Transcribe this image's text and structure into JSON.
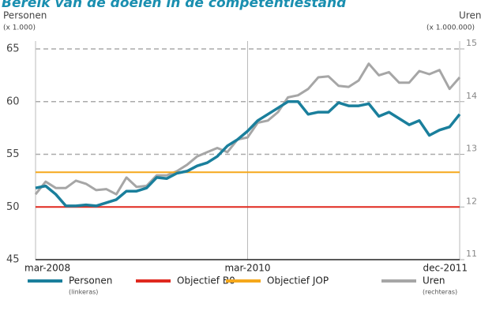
{
  "chart_data": {
    "type": "line",
    "title": "Bereik van de doelen in de competentiestand",
    "y_label": "Personen",
    "y_unit": "(x 1.000)",
    "y2_label": "Uren",
    "y2_unit": "(x 1.000.000)",
    "categories": [
      "mar-2008",
      null,
      null,
      null,
      null,
      null,
      null,
      null,
      null,
      null,
      null,
      null,
      null,
      null,
      null,
      null,
      null,
      null,
      null,
      null,
      null,
      "mar-2010",
      null,
      null,
      null,
      null,
      null,
      null,
      null,
      null,
      null,
      null,
      null,
      null,
      null,
      null,
      null,
      null,
      null,
      null,
      null,
      null,
      "dec-2011"
    ],
    "ylim": [
      45,
      65
    ],
    "yticks": [
      45,
      50,
      55,
      60,
      65
    ],
    "y2lim": [
      11,
      15
    ],
    "y2ticks": [
      11,
      12,
      13,
      14,
      15
    ],
    "grid": true,
    "series": [
      {
        "name": "Personen",
        "note": "(linkeras)",
        "color": "#1a7f9c",
        "values": [
          51.8,
          52.0,
          51.2,
          50.1,
          50.1,
          50.2,
          50.1,
          50.4,
          50.7,
          51.5,
          51.5,
          51.8,
          52.8,
          52.7,
          53.2,
          53.4,
          53.9,
          54.2,
          54.8,
          55.8,
          56.4,
          57.2,
          58.2,
          58.8,
          59.4,
          60.0,
          60.0,
          58.8,
          59.0,
          59.0,
          59.9,
          59.6,
          59.6,
          59.8,
          58.6,
          59.0,
          58.4,
          57.8,
          58.2,
          56.8,
          57.3,
          57.6,
          58.8
        ]
      },
      {
        "name": "Objectief B0",
        "color": "#e0291f",
        "level": 50
      },
      {
        "name": "Objectief JOP",
        "color": "#f5a81c",
        "level": 53.3
      },
      {
        "name": "Uren",
        "note": "(rechteras)",
        "color": "#a6a6a6",
        "axis": "y2",
        "values": [
          12.24,
          12.48,
          12.36,
          12.36,
          12.5,
          12.44,
          12.32,
          12.34,
          12.24,
          12.56,
          12.38,
          12.4,
          12.6,
          12.6,
          12.68,
          12.8,
          12.96,
          13.04,
          13.12,
          13.04,
          13.28,
          13.32,
          13.6,
          13.64,
          13.8,
          14.08,
          14.12,
          14.24,
          14.46,
          14.48,
          14.3,
          14.28,
          14.4,
          14.72,
          14.5,
          14.56,
          14.36,
          14.36,
          14.58,
          14.52,
          14.6,
          14.24,
          14.46
        ]
      }
    ]
  }
}
